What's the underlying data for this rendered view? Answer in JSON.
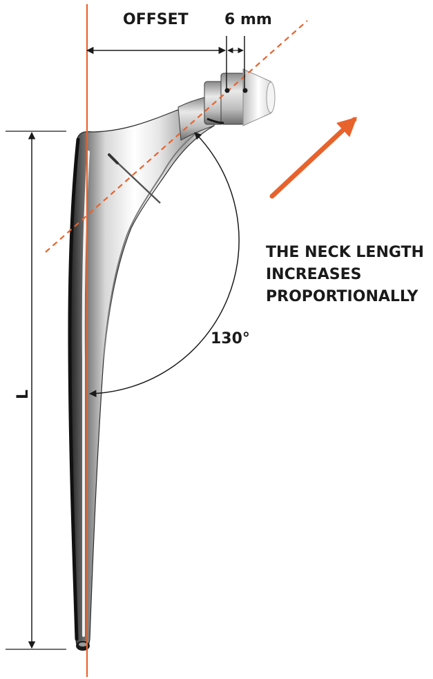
{
  "labels": {
    "offset": "OFFSET",
    "neck_increment": "6 mm",
    "length": "L",
    "angle": "130°",
    "note_lines": [
      "THE NECK LENGTH",
      "INCREASES",
      "PROPORTIONALLY"
    ]
  },
  "colors": {
    "axis_line": "#e8622c",
    "arrow": "#e8622c",
    "dimension_lines": "#1a1a1a",
    "text": "#1a1a1a",
    "implant_metal": "#c9c9c9",
    "implant_shadow": "#2a2a2a"
  },
  "icons": {
    "direction_arrow": "arrow-up-right-icon"
  }
}
